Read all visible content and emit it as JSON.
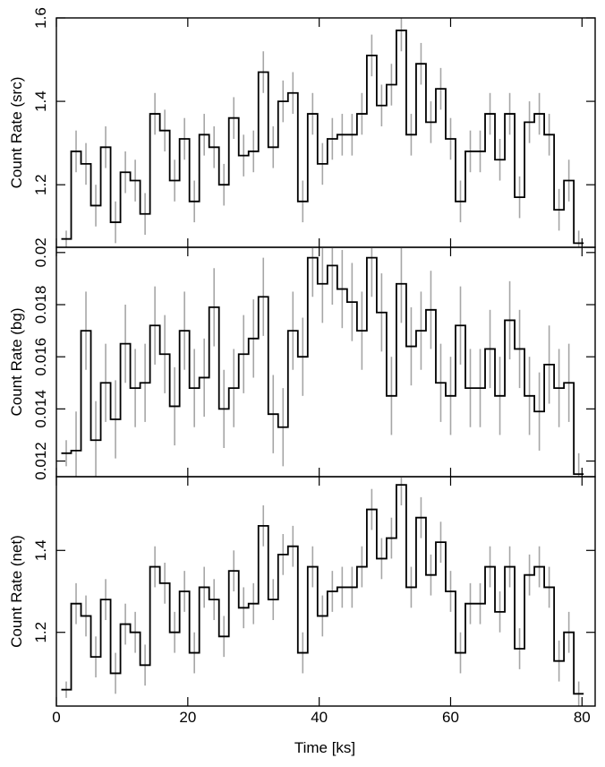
{
  "chart_data": [
    {
      "type": "line",
      "ylabel": "Count Rate (src)",
      "xlim": [
        0,
        82
      ],
      "ylim": [
        1.05,
        1.6
      ],
      "yticks": [
        1.2,
        1.4,
        1.6
      ],
      "ytick_labels": [
        "1.2",
        "1.4",
        "1.6"
      ],
      "style": "step with vertical error bars",
      "x": [
        1.5,
        3,
        4.5,
        6,
        7.5,
        9,
        10.5,
        12,
        13.5,
        15,
        16.5,
        18,
        19.5,
        21,
        22.5,
        24,
        25.5,
        27,
        28.5,
        30,
        31.5,
        33,
        34.5,
        36,
        37.5,
        39,
        40.5,
        42,
        43.5,
        45,
        46.5,
        48,
        49.5,
        51,
        52.5,
        54,
        55.5,
        57,
        58.5,
        60,
        61.5,
        63,
        64.5,
        66,
        67.5,
        69,
        70.5,
        72,
        73.5,
        75,
        76.5,
        78,
        79.5
      ],
      "values": [
        1.07,
        1.28,
        1.25,
        1.15,
        1.29,
        1.11,
        1.23,
        1.21,
        1.13,
        1.37,
        1.33,
        1.21,
        1.31,
        1.16,
        1.32,
        1.29,
        1.2,
        1.36,
        1.27,
        1.28,
        1.47,
        1.29,
        1.4,
        1.42,
        1.16,
        1.37,
        1.25,
        1.31,
        1.32,
        1.32,
        1.37,
        1.51,
        1.39,
        1.44,
        1.57,
        1.32,
        1.49,
        1.35,
        1.43,
        1.31,
        1.16,
        1.28,
        1.28,
        1.37,
        1.26,
        1.37,
        1.17,
        1.35,
        1.37,
        1.32,
        1.14,
        1.21,
        1.06
      ],
      "errors": [
        0.02,
        0.05,
        0.05,
        0.05,
        0.05,
        0.05,
        0.05,
        0.05,
        0.05,
        0.05,
        0.05,
        0.05,
        0.05,
        0.05,
        0.05,
        0.05,
        0.05,
        0.05,
        0.05,
        0.05,
        0.05,
        0.05,
        0.05,
        0.05,
        0.05,
        0.05,
        0.05,
        0.05,
        0.05,
        0.05,
        0.05,
        0.05,
        0.05,
        0.05,
        0.05,
        0.05,
        0.05,
        0.05,
        0.05,
        0.05,
        0.05,
        0.05,
        0.05,
        0.05,
        0.05,
        0.05,
        0.05,
        0.05,
        0.05,
        0.05,
        0.05,
        0.05,
        0.03
      ]
    },
    {
      "type": "line",
      "ylabel": "Count Rate (bg)",
      "xlim": [
        0,
        82
      ],
      "ylim": [
        0.0114,
        0.0202
      ],
      "yticks": [
        0.012,
        0.014,
        0.016,
        0.018,
        0.02
      ],
      "ytick_labels": [
        "0.012",
        "0.014",
        "0.016",
        "0.018",
        "0.02"
      ],
      "style": "step with vertical error bars",
      "x": [
        1.5,
        3,
        4.5,
        6,
        7.5,
        9,
        10.5,
        12,
        13.5,
        15,
        16.5,
        18,
        19.5,
        21,
        22.5,
        24,
        25.5,
        27,
        28.5,
        30,
        31.5,
        33,
        34.5,
        36,
        37.5,
        39,
        40.5,
        42,
        43.5,
        45,
        46.5,
        48,
        49.5,
        51,
        52.5,
        54,
        55.5,
        57,
        58.5,
        60,
        61.5,
        63,
        64.5,
        66,
        67.5,
        69,
        70.5,
        72,
        73.5,
        75,
        76.5,
        78,
        79.5
      ],
      "values": [
        0.0123,
        0.0124,
        0.017,
        0.0128,
        0.015,
        0.0136,
        0.0165,
        0.0148,
        0.015,
        0.0172,
        0.0161,
        0.0141,
        0.017,
        0.0148,
        0.0152,
        0.0179,
        0.014,
        0.0148,
        0.0161,
        0.0167,
        0.0183,
        0.0138,
        0.0133,
        0.017,
        0.016,
        0.0198,
        0.0188,
        0.0195,
        0.0186,
        0.0181,
        0.017,
        0.0198,
        0.0177,
        0.0145,
        0.0188,
        0.0164,
        0.017,
        0.0178,
        0.015,
        0.0145,
        0.0172,
        0.0148,
        0.0148,
        0.0163,
        0.0145,
        0.0174,
        0.0163,
        0.0145,
        0.0139,
        0.0157,
        0.0148,
        0.015,
        0.0115
      ],
      "errors": [
        0.0005,
        0.0015,
        0.0015,
        0.0015,
        0.0015,
        0.0015,
        0.0015,
        0.0015,
        0.0015,
        0.0015,
        0.0015,
        0.0015,
        0.0015,
        0.0015,
        0.0015,
        0.0015,
        0.0015,
        0.0015,
        0.0015,
        0.0015,
        0.0015,
        0.0015,
        0.0015,
        0.0015,
        0.0015,
        0.0015,
        0.0015,
        0.0015,
        0.0015,
        0.0015,
        0.0015,
        0.0015,
        0.0015,
        0.0015,
        0.0015,
        0.0015,
        0.0015,
        0.0015,
        0.0015,
        0.0015,
        0.0015,
        0.0015,
        0.0015,
        0.0015,
        0.0015,
        0.0015,
        0.0015,
        0.0015,
        0.0015,
        0.0015,
        0.0015,
        0.0015,
        0.0008
      ]
    },
    {
      "type": "line",
      "xlabel": "Time [ks]",
      "ylabel": "Count Rate (net)",
      "xlim": [
        0,
        82
      ],
      "xticks": [
        0,
        20,
        40,
        60,
        80
      ],
      "xtick_labels": [
        "0",
        "20",
        "40",
        "60",
        "80"
      ],
      "ylim": [
        1.02,
        1.58
      ],
      "yticks": [
        1.2,
        1.4
      ],
      "ytick_labels": [
        "1.2",
        "1.4"
      ],
      "style": "step with vertical error bars",
      "x": [
        1.5,
        3,
        4.5,
        6,
        7.5,
        9,
        10.5,
        12,
        13.5,
        15,
        16.5,
        18,
        19.5,
        21,
        22.5,
        24,
        25.5,
        27,
        28.5,
        30,
        31.5,
        33,
        34.5,
        36,
        37.5,
        39,
        40.5,
        42,
        43.5,
        45,
        46.5,
        48,
        49.5,
        51,
        52.5,
        54,
        55.5,
        57,
        58.5,
        60,
        61.5,
        63,
        64.5,
        66,
        67.5,
        69,
        70.5,
        72,
        73.5,
        75,
        76.5,
        78,
        79.5
      ],
      "values": [
        1.06,
        1.27,
        1.24,
        1.14,
        1.28,
        1.1,
        1.22,
        1.2,
        1.12,
        1.36,
        1.32,
        1.2,
        1.3,
        1.15,
        1.31,
        1.28,
        1.19,
        1.35,
        1.26,
        1.27,
        1.46,
        1.28,
        1.39,
        1.41,
        1.15,
        1.36,
        1.24,
        1.3,
        1.31,
        1.31,
        1.36,
        1.5,
        1.38,
        1.43,
        1.56,
        1.31,
        1.48,
        1.34,
        1.42,
        1.3,
        1.15,
        1.27,
        1.27,
        1.36,
        1.25,
        1.36,
        1.16,
        1.34,
        1.36,
        1.31,
        1.13,
        1.2,
        1.05
      ],
      "errors": [
        0.02,
        0.05,
        0.05,
        0.05,
        0.05,
        0.05,
        0.05,
        0.05,
        0.05,
        0.05,
        0.05,
        0.05,
        0.05,
        0.05,
        0.05,
        0.05,
        0.05,
        0.05,
        0.05,
        0.05,
        0.05,
        0.05,
        0.05,
        0.05,
        0.05,
        0.05,
        0.05,
        0.05,
        0.05,
        0.05,
        0.05,
        0.05,
        0.05,
        0.05,
        0.05,
        0.05,
        0.05,
        0.05,
        0.05,
        0.05,
        0.05,
        0.05,
        0.05,
        0.05,
        0.05,
        0.05,
        0.05,
        0.05,
        0.05,
        0.05,
        0.05,
        0.05,
        0.03
      ]
    }
  ],
  "colors": {
    "step_line": "#000000",
    "error_bar": "#a6a6a6",
    "frame": "#000000"
  }
}
